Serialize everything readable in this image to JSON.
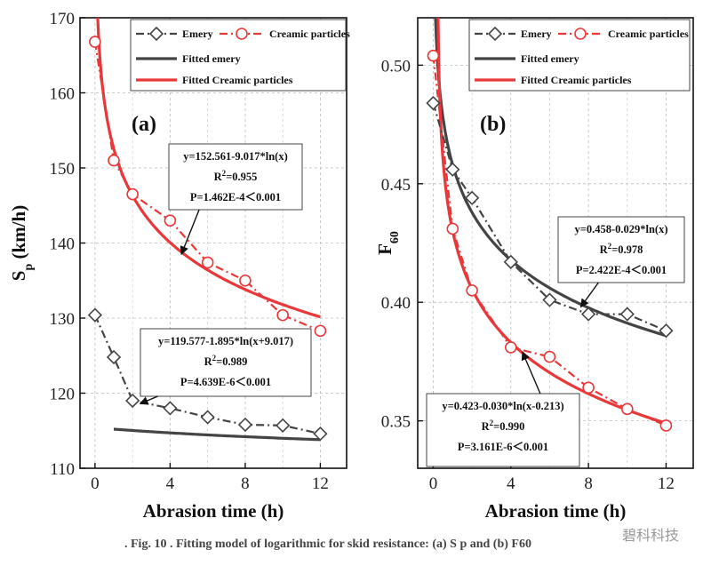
{
  "caption": ". Fig. 10 . Fitting model of logarithmic for skid resistance: (a) S p and (b) F60",
  "watermark": "碧科科技",
  "colors": {
    "emery": "#444444",
    "ceramic": "#e8383a"
  },
  "chart_data": [
    {
      "type": "scatter",
      "panel_label": "(a)",
      "xlabel": "Abrasion time (h)",
      "ylabel": "S_p (km/h)",
      "ylabel_main": "S",
      "ylabel_sub": "p",
      "ylabel_unit": " (km/h)",
      "xlim": [
        -0.8,
        13.4
      ],
      "ylim": [
        110,
        170
      ],
      "xticks": [
        0,
        4,
        8,
        12
      ],
      "yticks": [
        110,
        120,
        130,
        140,
        150,
        160,
        170
      ],
      "grid": true,
      "legend_position": "top-right",
      "series": [
        {
          "name": "Emery",
          "marker": "diamond",
          "style": "dashdot",
          "color": "#444444",
          "x": [
            0,
            1,
            2,
            4,
            6,
            8,
            10,
            12
          ],
          "y": [
            130.4,
            124.8,
            119.0,
            118.0,
            116.8,
            115.8,
            115.7,
            114.6
          ]
        },
        {
          "name": "Creamic  particles",
          "marker": "circle",
          "style": "dashdot",
          "color": "#e8383a",
          "x": [
            0,
            1,
            2,
            4,
            6,
            8,
            10,
            12
          ],
          "y": [
            166.8,
            151.0,
            146.5,
            143.0,
            137.4,
            135.0,
            130.4,
            128.3
          ]
        }
      ],
      "fits": [
        {
          "name": "Fitted emery",
          "color": "#444444",
          "model": "a-b*ln(x+c)",
          "a": 119.577,
          "b": 1.895,
          "c": 9.017,
          "x_from": 1,
          "x_to": 12
        },
        {
          "name": "Fitted Creamic particles",
          "color": "#e8383a",
          "model": "a-b*ln(x)",
          "a": 152.561,
          "b": 9.017,
          "c": 0,
          "x_from": 0.05,
          "x_to": 12
        }
      ],
      "annotations": [
        {
          "lines": [
            "y=152.561-9.017*ln(x)",
            "R2=0.955",
            "P=1.462E-4＜0.001"
          ],
          "arrow_to_x": 4.6,
          "arrow_to_y": 138.5
        },
        {
          "lines": [
            "y=119.577-1.895*ln(x+9.017)",
            "R2=0.989",
            "P=4.639E-6＜0.001"
          ],
          "arrow_to_x": 2.4,
          "arrow_to_y": 118.6
        }
      ]
    },
    {
      "type": "scatter",
      "panel_label": "(b)",
      "xlabel": "Abrasion time (h)",
      "ylabel": "F_60",
      "ylabel_main": "F",
      "ylabel_sub": "60",
      "ylabel_unit": "",
      "xlim": [
        -0.8,
        13.4
      ],
      "ylim": [
        0.33,
        0.52
      ],
      "xticks": [
        0,
        4,
        8,
        12
      ],
      "yticks": [
        0.35,
        0.4,
        0.45,
        0.5
      ],
      "grid": true,
      "legend_position": "top-right",
      "series": [
        {
          "name": "Emery",
          "marker": "diamond",
          "style": "dashdot",
          "color": "#444444",
          "x": [
            0,
            1,
            2,
            4,
            6,
            8,
            10,
            12
          ],
          "y": [
            0.484,
            0.456,
            0.444,
            0.417,
            0.401,
            0.395,
            0.395,
            0.388
          ]
        },
        {
          "name": "Creamic  particles",
          "marker": "circle",
          "style": "dashdot",
          "color": "#e8383a",
          "x": [
            0,
            1,
            2,
            4,
            6,
            8,
            10,
            12
          ],
          "y": [
            0.504,
            0.431,
            0.405,
            0.381,
            0.377,
            0.364,
            0.355,
            0.348
          ]
        }
      ],
      "fits": [
        {
          "name": "Fitted emery",
          "color": "#444444",
          "model": "a-b*ln(x)",
          "a": 0.458,
          "b": 0.029,
          "c": 0,
          "x_from": 0.05,
          "x_to": 12
        },
        {
          "name": "Fitted Creamic particles",
          "color": "#e8383a",
          "model": "a-b*ln(x+c)",
          "a": 0.423,
          "b": 0.03,
          "c": -0.213,
          "x_from": 0.25,
          "x_to": 12
        }
      ],
      "annotations": [
        {
          "lines": [
            "y=0.458-0.029*ln(x)",
            "R2=0.978",
            "P=2.422E-4＜0.001"
          ],
          "arrow_to_x": 7.6,
          "arrow_to_y": 0.398
        },
        {
          "lines": [
            "y=0.423-0.030*ln(x-0.213)",
            "R2=0.990",
            "P=3.161E-6＜0.001"
          ],
          "arrow_to_x": 4.6,
          "arrow_to_y": 0.379
        }
      ]
    }
  ]
}
